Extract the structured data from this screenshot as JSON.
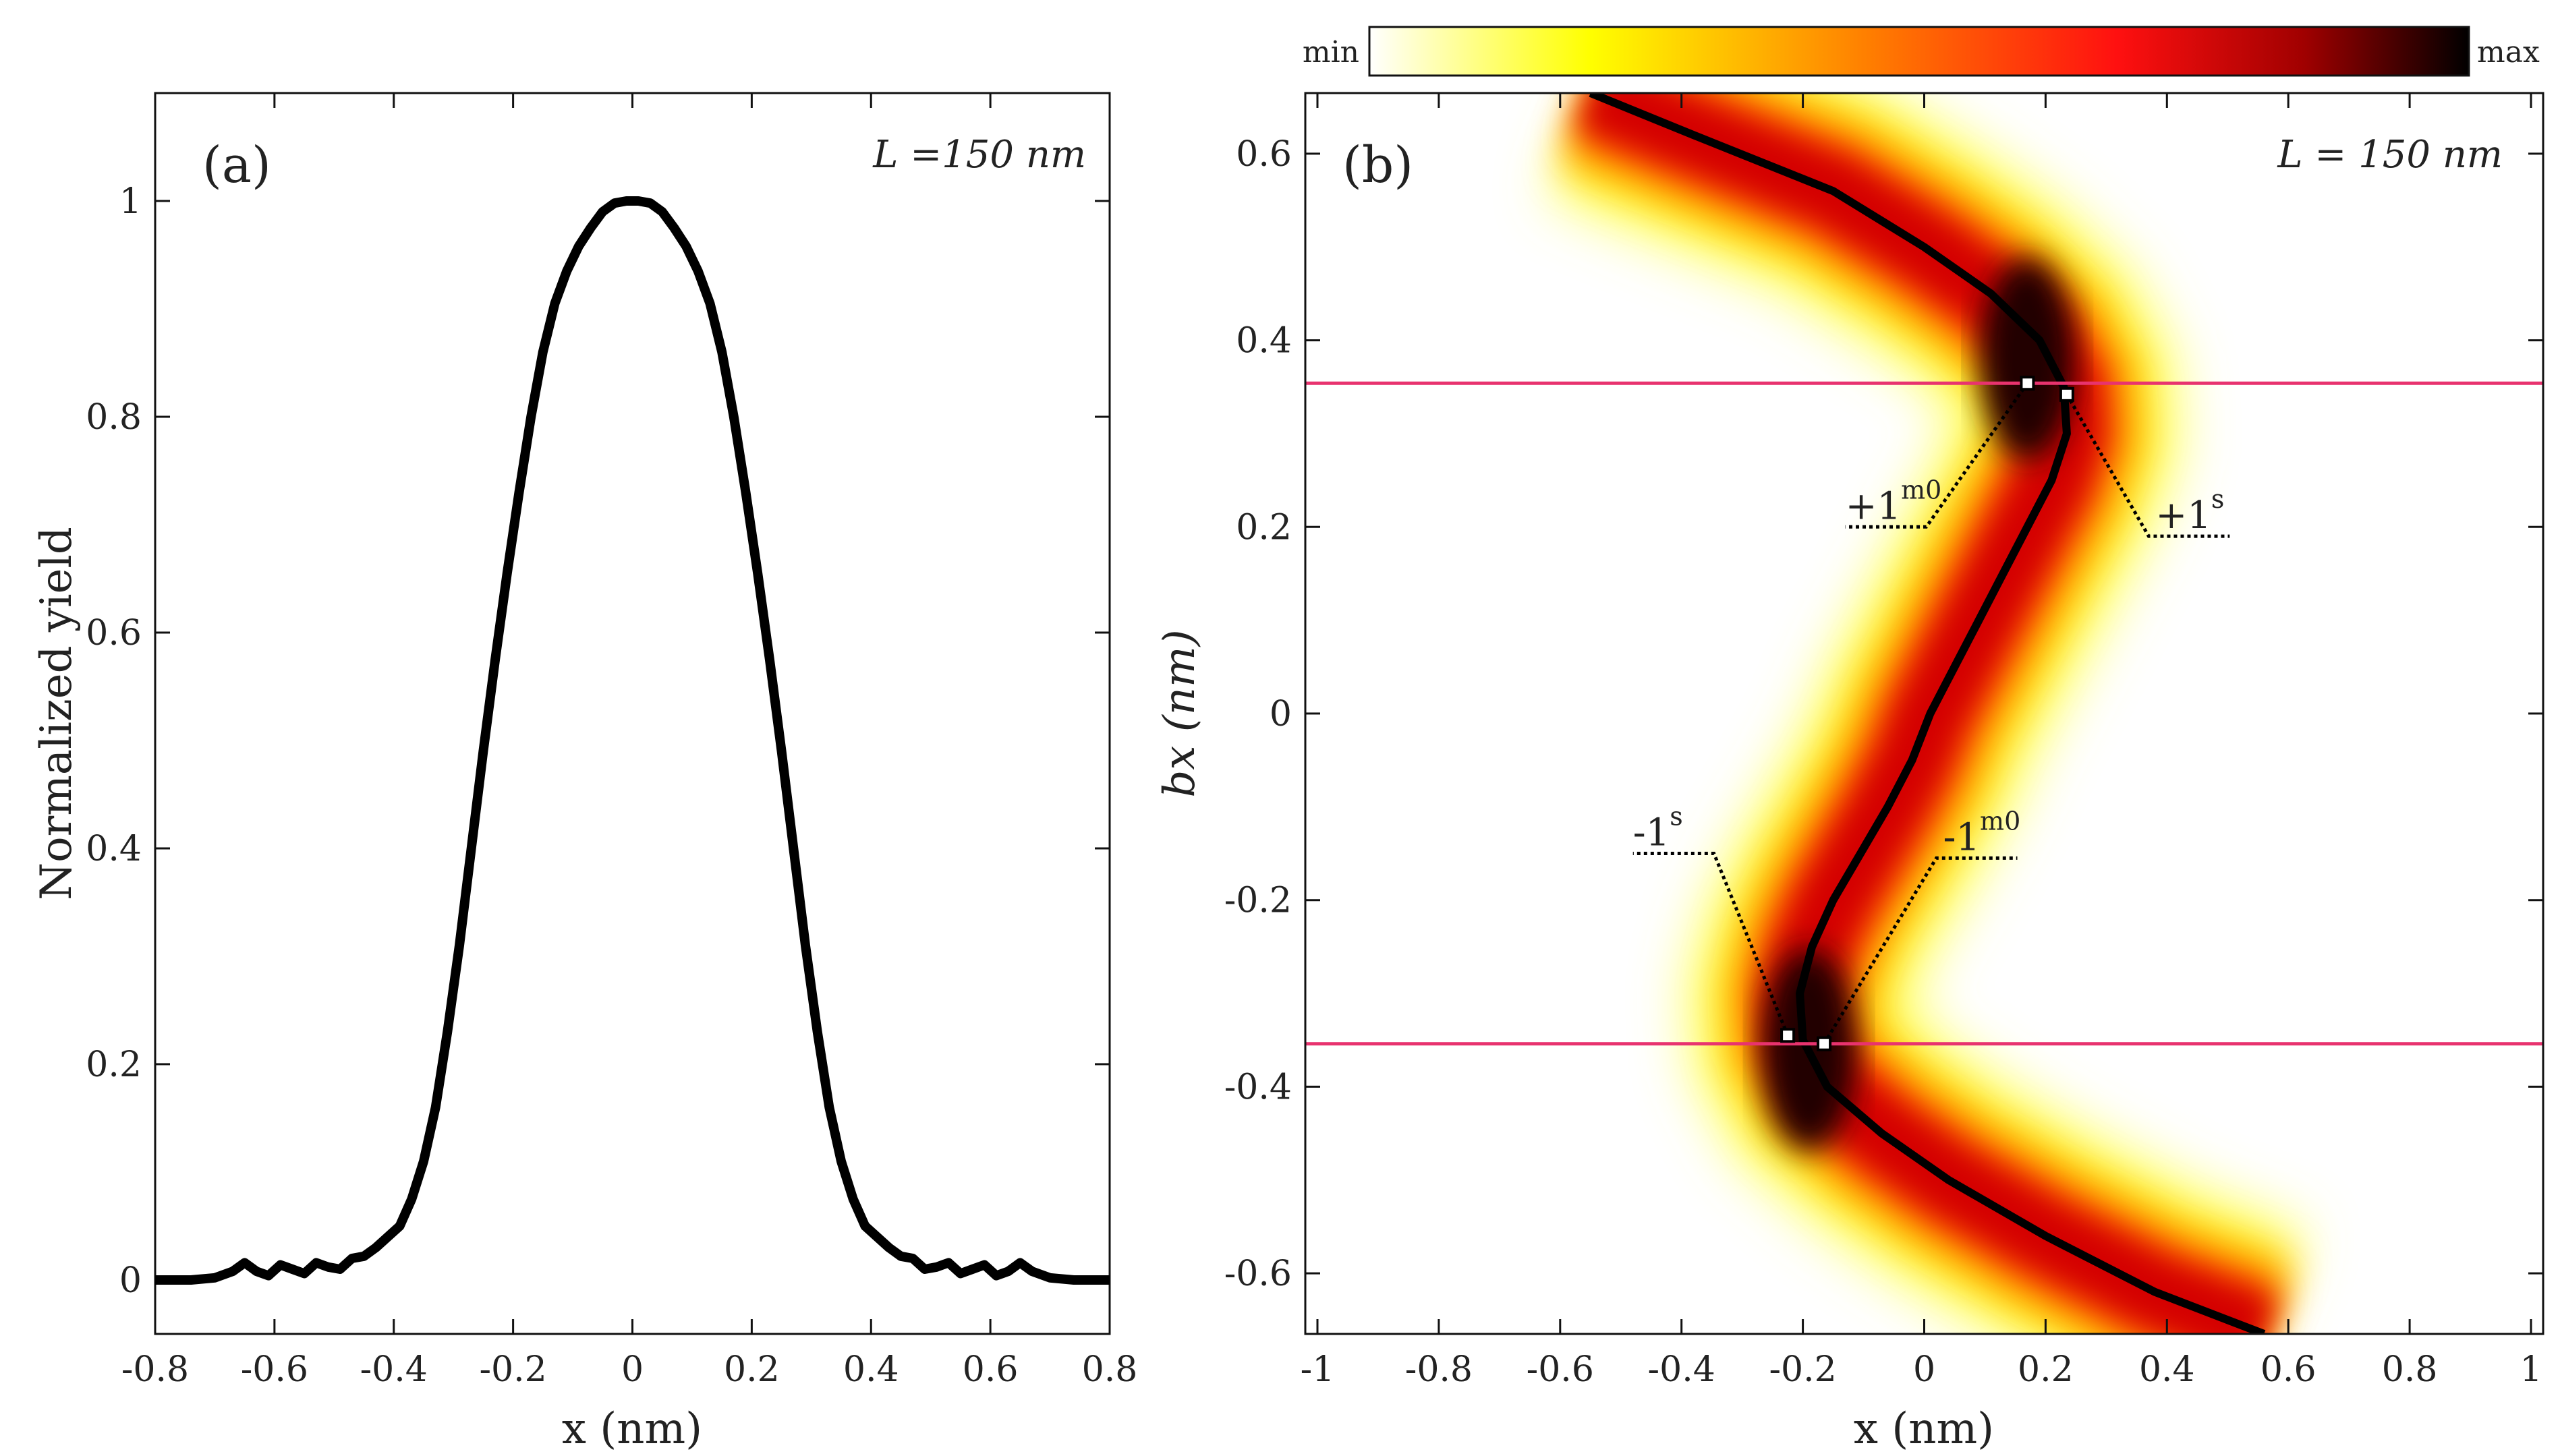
{
  "chart_data": [
    {
      "type": "line",
      "panel_label": "(a)",
      "annotation": "L =150 nm",
      "xlabel": "x (nm)",
      "ylabel": "Normalized yield",
      "xlim": [
        -0.8,
        0.8
      ],
      "ylim": [
        -0.05,
        1.1
      ],
      "xticks": [
        "-0.8",
        "-0.6",
        "-0.4",
        "-0.2",
        "0",
        "0.2",
        "0.4",
        "0.6",
        "0.8"
      ],
      "yticks": [
        "0",
        "0.2",
        "0.4",
        "0.6",
        "0.8",
        "1"
      ],
      "series": [
        {
          "name": "yield",
          "x": [
            -0.8,
            -0.74,
            -0.7,
            -0.67,
            -0.65,
            -0.63,
            -0.61,
            -0.59,
            -0.57,
            -0.55,
            -0.53,
            -0.51,
            -0.49,
            -0.47,
            -0.45,
            -0.43,
            -0.41,
            -0.39,
            -0.37,
            -0.35,
            -0.33,
            -0.31,
            -0.29,
            -0.27,
            -0.25,
            -0.23,
            -0.21,
            -0.19,
            -0.17,
            -0.15,
            -0.13,
            -0.11,
            -0.09,
            -0.07,
            -0.05,
            -0.03,
            -0.01,
            0,
            0.01,
            0.03,
            0.05,
            0.07,
            0.09,
            0.11,
            0.13,
            0.15,
            0.17,
            0.19,
            0.21,
            0.23,
            0.25,
            0.27,
            0.29,
            0.31,
            0.33,
            0.35,
            0.37,
            0.39,
            0.41,
            0.43,
            0.45,
            0.47,
            0.49,
            0.51,
            0.53,
            0.55,
            0.57,
            0.59,
            0.61,
            0.63,
            0.65,
            0.67,
            0.7,
            0.74,
            0.8
          ],
          "values": [
            0.0,
            0.0,
            0.002,
            0.008,
            0.016,
            0.008,
            0.004,
            0.014,
            0.01,
            0.006,
            0.016,
            0.012,
            0.01,
            0.02,
            0.022,
            0.03,
            0.04,
            0.05,
            0.075,
            0.11,
            0.16,
            0.23,
            0.31,
            0.4,
            0.49,
            0.575,
            0.655,
            0.73,
            0.8,
            0.86,
            0.905,
            0.935,
            0.958,
            0.975,
            0.99,
            0.998,
            1.0,
            1.0,
            1.0,
            0.998,
            0.99,
            0.975,
            0.958,
            0.935,
            0.905,
            0.86,
            0.8,
            0.73,
            0.655,
            0.575,
            0.49,
            0.4,
            0.31,
            0.23,
            0.16,
            0.11,
            0.075,
            0.05,
            0.04,
            0.03,
            0.022,
            0.02,
            0.01,
            0.012,
            0.016,
            0.006,
            0.01,
            0.014,
            0.004,
            0.008,
            0.016,
            0.008,
            0.002,
            0.0,
            0.0
          ]
        }
      ]
    },
    {
      "type": "heatmap",
      "panel_label": "(b)",
      "annotation": "L = 150 nm",
      "xlabel": "x (nm)",
      "ylabel": "bx (nm)",
      "xlim": [
        -1.02,
        1.02
      ],
      "ylim": [
        -0.665,
        0.665
      ],
      "xticks": [
        "-1",
        "-0.8",
        "-0.6",
        "-0.4",
        "-0.2",
        "0",
        "0.2",
        "0.4",
        "0.6",
        "0.8",
        "1"
      ],
      "yticks": [
        "-0.6",
        "-0.4",
        "-0.2",
        "0",
        "0.2",
        "0.4",
        "0.6"
      ],
      "colorbar": {
        "min_label": "min",
        "max_label": "max",
        "colors": [
          "#ffffff",
          "#ffff00",
          "#ff8000",
          "#ff1010",
          "#a00000",
          "#000000"
        ]
      },
      "bands": [
        {
          "from": [
            0.0,
            0.0,
            0.2,
            0.35,
            0.55,
            0.8,
            1.0
          ],
          "to": [
            0.0,
            0.0,
            0.2,
            0.35,
            0.55,
            0.8,
            1.0
          ]
        }
      ],
      "center_curve": {
        "bx": [
          -0.665,
          -0.62,
          -0.56,
          -0.5,
          -0.45,
          -0.4,
          -0.35,
          -0.3,
          -0.25,
          -0.2,
          -0.15,
          -0.1,
          -0.05,
          0.0,
          0.05,
          0.1,
          0.15,
          0.2,
          0.25,
          0.3,
          0.35,
          0.4,
          0.45,
          0.5,
          0.56,
          0.62,
          0.665
        ],
        "x": [
          0.56,
          0.38,
          0.2,
          0.04,
          -0.07,
          -0.16,
          -0.2,
          -0.205,
          -0.185,
          -0.15,
          -0.105,
          -0.06,
          -0.02,
          0.01,
          0.05,
          0.09,
          0.13,
          0.17,
          0.21,
          0.235,
          0.23,
          0.19,
          0.11,
          0.0,
          -0.15,
          -0.38,
          -0.55
        ]
      },
      "horizontal_lines": {
        "bx": [
          0.354,
          -0.354
        ],
        "color": "#e8336f"
      },
      "markers": [
        {
          "label": "+1",
          "sup": "m0",
          "x": 0.17,
          "y": 0.354,
          "label_x": -0.13,
          "label_y": 0.2
        },
        {
          "label": "+1",
          "sup": "s",
          "x": 0.235,
          "y": 0.342,
          "label_x": 0.37,
          "label_y": 0.19
        },
        {
          "label": "-1",
          "sup": "s",
          "x": -0.225,
          "y": -0.345,
          "label_x": -0.48,
          "label_y": -0.15
        },
        {
          "label": "-1",
          "sup": "m0",
          "x": -0.165,
          "y": -0.354,
          "label_x": 0.02,
          "label_y": -0.155
        }
      ]
    }
  ]
}
